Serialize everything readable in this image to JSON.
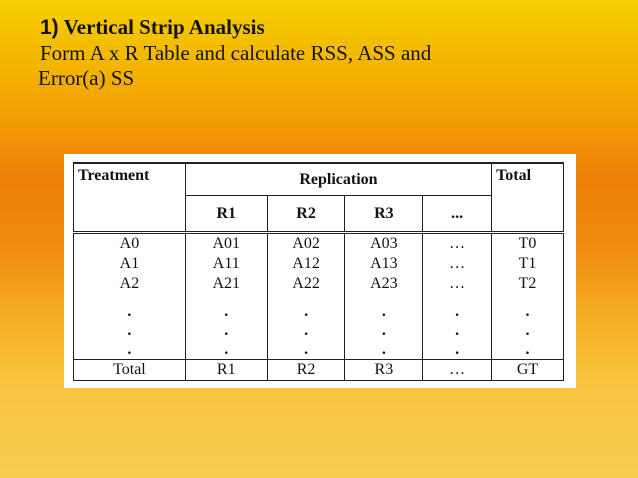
{
  "heading": {
    "number": "1)",
    "title": "Vertical Strip Analysis",
    "line2": "Form A x R Table and calculate RSS, ASS and",
    "line3": "Error(a) SS"
  },
  "table": {
    "header": {
      "treatment": "Treatment",
      "replication": "Replication",
      "total": "Total"
    },
    "subheaders": [
      "R1",
      "R2",
      "R3",
      "..."
    ],
    "rows": [
      [
        "A0",
        "A01",
        "A02",
        "A03",
        "…",
        "T0"
      ],
      [
        "A1",
        "A11",
        "A12",
        "A13",
        "…",
        "T1"
      ],
      [
        "A2",
        "A21",
        "A22",
        "A23",
        "…",
        "T2"
      ]
    ],
    "dot": ".",
    "total_row": [
      "Total",
      "R1",
      "R2",
      "R3",
      "…",
      "GT"
    ]
  }
}
